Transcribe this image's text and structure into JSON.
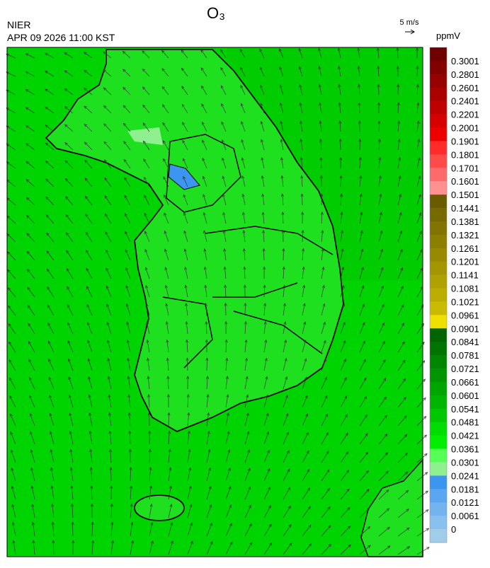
{
  "header": {
    "title": "O₃",
    "agency": "NIER",
    "datetime": "APR 09 2026 11:00 KST",
    "vector_scale": "5 m/s",
    "unit": "ppmV"
  },
  "colorbar": {
    "labels": [
      0.3001,
      0.2801,
      0.2601,
      0.2401,
      0.2201,
      0.2001,
      0.1901,
      0.1801,
      0.1701,
      0.1601,
      0.1501,
      0.1441,
      0.1381,
      0.1321,
      0.1261,
      0.1201,
      0.1141,
      0.1081,
      0.1021,
      0.0961,
      0.0901,
      0.0841,
      0.0781,
      0.0721,
      0.0661,
      0.0601,
      0.0541,
      0.0481,
      0.0421,
      0.0361,
      0.0301,
      0.0241,
      0.0181,
      0.0121,
      0.0061,
      0
    ],
    "colors": [
      "#6e0000",
      "#820000",
      "#960000",
      "#aa0000",
      "#c00000",
      "#d60000",
      "#ee0000",
      "#ff2a2a",
      "#ff4a4a",
      "#ff6a6a",
      "#ff9090",
      "#6b5b00",
      "#766900",
      "#817400",
      "#8c7f00",
      "#978a00",
      "#a39600",
      "#afa200",
      "#bbae00",
      "#c8bb00",
      "#f0e000",
      "#006400",
      "#007400",
      "#008500",
      "#009500",
      "#00a500",
      "#00b500",
      "#00c800",
      "#00dd00",
      "#00ee00",
      "#55ff55",
      "#8ff08f",
      "#3c96f0",
      "#5aa6f0",
      "#72b4f0",
      "#88c0ee",
      "#a0cde8"
    ]
  }
}
